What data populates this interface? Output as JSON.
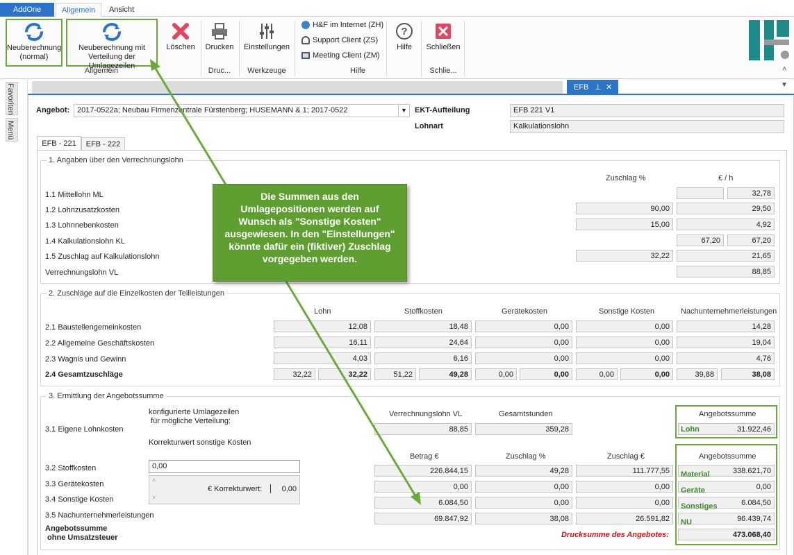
{
  "ribbon_tabs": {
    "addone": "AddOne",
    "allgemein": "Allgemein",
    "ansicht": "Ansicht"
  },
  "ribbon": {
    "neuberechnung": "Neuberechnung (normal)",
    "neuberechnung_verteilung": "Neuberechnung mit Verteilung der Umlagezeilen",
    "loeschen": "Löschen",
    "drucken": "Drucken",
    "einstellungen": "Einstellungen",
    "internet": "H&F im Internet (ZH)",
    "support": "Support Client (ZS)",
    "meeting": "Meeting Client (ZM)",
    "hilfe": "Hilfe",
    "schliessen": "Schließen",
    "group_allgemein": "Allgemein",
    "group_druc": "Druc...",
    "group_werkzeuge": "Werkzeuge",
    "group_hilfe": "Hilfe",
    "group_schlie": "Schlie..."
  },
  "side": {
    "favoriten": "Favoriten",
    "menue": "Menü"
  },
  "doc_tab": {
    "label": "EFB",
    "pin": "ᵃ",
    "close": "✕"
  },
  "top": {
    "angebot_label": "Angebot:",
    "angebot_value": "2017-0522a; Neubau Firmenzentrale Fürstenberg; HUSEMANN & 1; 2017-0522",
    "ekt_label": "EKT-Aufteilung",
    "ekt_value": "EFB 221 V1",
    "lohnart_label": "Lohnart",
    "lohnart_value": "Kalkulationslohn"
  },
  "inner_tabs": [
    "EFB - 221",
    "EFB - 222"
  ],
  "s1": {
    "title": "1. Angaben über den Verrechnungslohn",
    "col_zuschlag": "Zuschlag %",
    "col_eur": "€ / h",
    "rows": [
      {
        "label": "1.1 Mittellohn ML",
        "eur": "32,78"
      },
      {
        "label": "1.2 Lohnzusatzkosten",
        "zuschlag": "90,00",
        "eur": "29,50"
      },
      {
        "label": "1.3 Lohnnebenkosten",
        "zuschlag": "15,00",
        "eur": "4,92"
      },
      {
        "label": "1.4 Kalkulationslohn KL",
        "mid": "67,20",
        "eur": "67,20"
      },
      {
        "label": "1.5 Zuschlag auf Kalkulationslohn",
        "zuschlag": "32,22",
        "eur": "21,65"
      },
      {
        "label": "Verrechnungslohn VL",
        "eur": "88,85"
      }
    ]
  },
  "s2": {
    "title": "2. Zuschläge auf die Einzelkosten der Teilleistungen",
    "cols": [
      "Lohn",
      "Stoffkosten",
      "Gerätekosten",
      "Sonstige Kosten",
      "Nachunternehmerleistungen"
    ],
    "rows": [
      {
        "label": "2.1 Baustellengemeinkosten",
        "v": [
          "12,08",
          "18,48",
          "0,00",
          "0,00",
          "14,28"
        ]
      },
      {
        "label": "2.2 Allgemeine Geschäftskosten",
        "v": [
          "16,11",
          "24,64",
          "0,00",
          "0,00",
          "19,04"
        ]
      },
      {
        "label": "2.3 Wagnis und Gewinn",
        "v": [
          "4,03",
          "6,16",
          "0,00",
          "0,00",
          "4,76"
        ]
      }
    ],
    "total_label": "2.4 Gesamtzuschläge",
    "total_small": [
      "32,22",
      "51,22",
      "0,00",
      "0,00",
      "39,88"
    ],
    "total_bold": [
      "32,22",
      "49,28",
      "0,00",
      "0,00",
      "38,08"
    ]
  },
  "s3": {
    "title": "3. Ermittlung der Angebotssumme",
    "konfig_label": "konfigurierte Umlagezeilen\n für mögliche Verteilung:",
    "korrektur_label": "Korrekturwert sonstige Kosten",
    "l31": "3.1 Eigene Lohnkosten",
    "l32": "3.2 Stoffkosten",
    "l33": "3.3 Gerätekosten",
    "l34": "3.4 Sonstige Kosten",
    "l35": "3.5 Nachunternehmerleistungen",
    "sum_label": "Angebotssumme\n ohne Umsatzsteuer",
    "stoff_input": "0,00",
    "korrektur_inline": "€ Korrekturwert:",
    "korrektur_value": "0,00",
    "col_vl": "Verrechnungslohn VL",
    "col_std": "Gesamtstunden",
    "vl": "88,85",
    "std": "359,28",
    "col_betrag": "Betrag €",
    "col_zpct": "Zuschlag %",
    "col_zeur": "Zuschlag €",
    "rows": [
      [
        "226.844,15",
        "49,28",
        "111.777,55"
      ],
      [
        "0,00",
        "0,00",
        "0,00"
      ],
      [
        "6.084,50",
        "0,00",
        "0,00"
      ],
      [
        "69.847,92",
        "38,08",
        "26.591,82"
      ]
    ],
    "angebotssumme": "Angebotssumme",
    "lohn_label": "Lohn",
    "lohn_value": "31.922,46",
    "r_labels": [
      "Material",
      "Geräte",
      "Sonstiges",
      "NU"
    ],
    "r_values": [
      "338.621,70",
      "0,00",
      "6.084,50",
      "96.439,74"
    ],
    "druck_label": "Drucksumme des Angebotes:",
    "druck_value": "473.068,40"
  },
  "callout": "Die Summen aus den Umlagepositionen werden auf Wunsch als \"Sonstige Kosten\" ausgewiesen.  In den \"Einstellungen\" könnte dafür ein (fiktiver) Zuschlag vorgegeben werden.",
  "colors": {
    "green": "#6aaa3a",
    "callout_bg": "#5f9f31",
    "blue": "#2b74c7",
    "red": "#dd1111"
  }
}
